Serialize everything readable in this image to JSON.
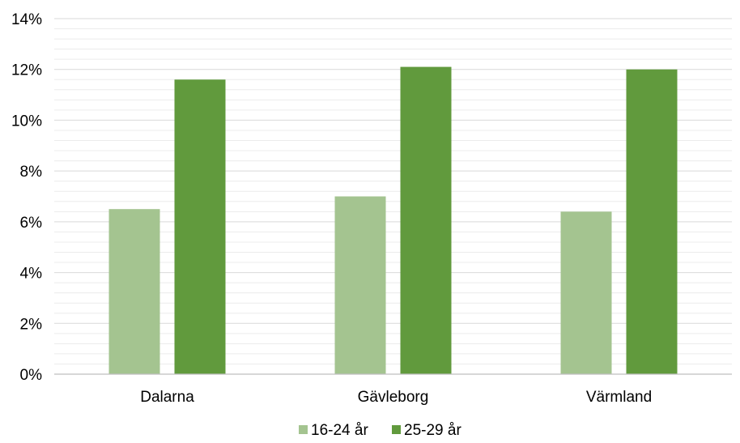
{
  "chart_data": {
    "type": "bar",
    "title": "",
    "xlabel": "",
    "ylabel": "",
    "categories": [
      "Dalarna",
      "Gävleborg",
      "Värmland"
    ],
    "series": [
      {
        "name": "16-24 år",
        "values": [
          6.5,
          7.0,
          6.4
        ],
        "color": "#a4c490"
      },
      {
        "name": "25-29 år",
        "values": [
          11.6,
          12.1,
          12.0
        ],
        "color": "#619a3d"
      }
    ],
    "ylim": [
      0,
      14
    ],
    "y_ticks": [
      0,
      2,
      4,
      6,
      8,
      10,
      12,
      14
    ],
    "y_tick_labels": [
      "0%",
      "2%",
      "4%",
      "6%",
      "8%",
      "10%",
      "12%",
      "14%"
    ],
    "grid": true,
    "minor_gridlines": true,
    "legend_position": "bottom"
  }
}
